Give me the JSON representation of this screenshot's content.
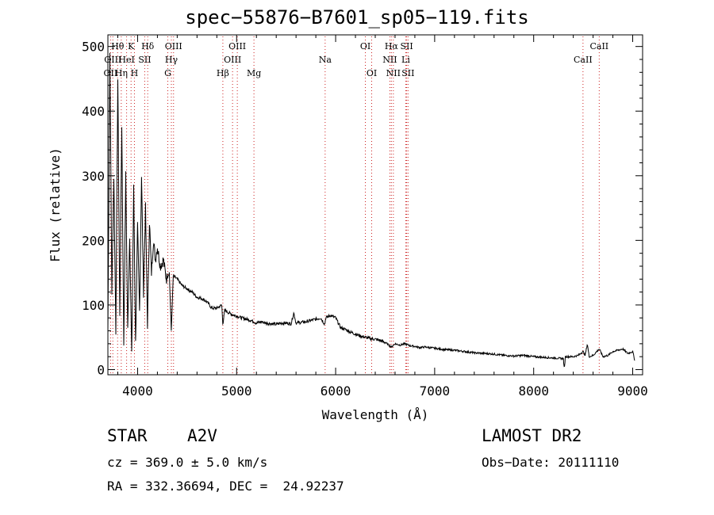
{
  "title": "spec−55876−B7601_sp05−119.fits",
  "info": {
    "obj_class": "STAR",
    "subclass": "A2V",
    "survey": "LAMOST DR2",
    "cz": "cz = 369.0 ± 5.0 km/s",
    "obs_date": "Obs−Date: 20111110",
    "radec": "RA = 332.36694, DEC =  24.92237"
  },
  "chart_data": {
    "type": "line",
    "title": "spec−55876−B7601_sp05−119.fits",
    "xlabel": "Wavelength (Å)",
    "ylabel": "Flux (relative)",
    "xlim": [
      3700,
      9100
    ],
    "ylim": [
      -8,
      518
    ],
    "xticks": [
      4000,
      5000,
      6000,
      7000,
      8000,
      9000
    ],
    "yticks": [
      0,
      100,
      200,
      300,
      400,
      500
    ],
    "grid": false,
    "legend": "none",
    "colors": {
      "line": "#000000",
      "marker": "#cc2222"
    },
    "series": [
      {
        "x": [
          3700,
          3720,
          3740,
          3760,
          3780,
          3800,
          3820,
          3840,
          3860,
          3880,
          3900,
          3920,
          3940,
          3960,
          3980,
          4000,
          4020,
          4040,
          4060,
          4080,
          4100,
          4120,
          4140,
          4160,
          4180,
          4200,
          4230,
          4260,
          4290,
          4320,
          4340,
          4360,
          4400,
          4450,
          4500,
          4550,
          4600,
          4650,
          4700,
          4750,
          4800,
          4850,
          4861,
          4880,
          4920,
          4960,
          5000,
          5050,
          5100,
          5150,
          5200,
          5250,
          5300,
          5350,
          5400,
          5450,
          5500,
          5550,
          5577,
          5600,
          5650,
          5700,
          5750,
          5800,
          5850,
          5890,
          5900,
          5950,
          6000,
          6050,
          6100,
          6150,
          6200,
          6250,
          6300,
          6350,
          6400,
          6450,
          6500,
          6563,
          6600,
          6650,
          6700,
          6750,
          6800,
          6850,
          6900,
          6950,
          7000,
          7100,
          7200,
          7300,
          7400,
          7500,
          7600,
          7700,
          7800,
          7900,
          8000,
          8100,
          8200,
          8300,
          8310,
          8320,
          8400,
          8450,
          8498,
          8520,
          8542,
          8560,
          8600,
          8662,
          8700,
          8750,
          8800,
          8850,
          8900,
          8950,
          9000,
          9020
        ],
        "y": [
          60,
          490,
          120,
          300,
          60,
          450,
          80,
          380,
          40,
          300,
          60,
          210,
          20,
          280,
          40,
          220,
          90,
          300,
          120,
          250,
          70,
          230,
          150,
          200,
          170,
          190,
          160,
          170,
          140,
          150,
          60,
          145,
          140,
          130,
          125,
          120,
          112,
          110,
          105,
          95,
          95,
          100,
          70,
          92,
          88,
          85,
          83,
          80,
          78,
          76,
          72,
          74,
          72,
          71,
          70,
          72,
          72,
          71,
          88,
          72,
          73,
          74,
          76,
          78,
          80,
          70,
          80,
          84,
          80,
          65,
          62,
          58,
          55,
          52,
          50,
          48,
          47,
          45,
          42,
          35,
          40,
          38,
          40,
          37,
          36,
          34,
          35,
          34,
          33,
          31,
          30,
          28,
          26,
          25,
          24,
          22,
          21,
          22,
          20,
          19,
          18,
          17,
          0,
          20,
          20,
          22,
          28,
          22,
          40,
          20,
          22,
          32,
          20,
          22,
          28,
          30,
          32,
          25,
          28,
          15
        ]
      }
    ],
    "lines": [
      {
        "label": "OII",
        "wave": 3727,
        "row": 2
      },
      {
        "label": "OIII",
        "wave": 3750,
        "row": 1
      },
      {
        "label": "Hθ",
        "wave": 3798,
        "row": 0
      },
      {
        "label": "Hη",
        "wave": 3835,
        "row": 2
      },
      {
        "label": "HeI",
        "wave": 3889,
        "row": 1
      },
      {
        "label": "K",
        "wave": 3934,
        "row": 0
      },
      {
        "label": "H",
        "wave": 3968,
        "row": 2
      },
      {
        "label": "SII",
        "wave": 4072,
        "row": 1
      },
      {
        "label": "Hδ",
        "wave": 4102,
        "row": 0
      },
      {
        "label": "G",
        "wave": 4305,
        "row": 2
      },
      {
        "label": "Hγ",
        "wave": 4341,
        "row": 1
      },
      {
        "label": "OIII",
        "wave": 4363,
        "row": 0
      },
      {
        "label": "Hβ",
        "wave": 4861,
        "row": 2
      },
      {
        "label": "OIII",
        "wave": 4959,
        "row": 1
      },
      {
        "label": "OIII",
        "wave": 5007,
        "row": 0
      },
      {
        "label": "Mg",
        "wave": 5175,
        "row": 2
      },
      {
        "label": "Na",
        "wave": 5894,
        "row": 1
      },
      {
        "label": "OI",
        "wave": 6300,
        "row": 0
      },
      {
        "label": "OI",
        "wave": 6364,
        "row": 2
      },
      {
        "label": "NII",
        "wave": 6548,
        "row": 1
      },
      {
        "label": "Hα",
        "wave": 6563,
        "row": 0
      },
      {
        "label": "NII",
        "wave": 6583,
        "row": 2
      },
      {
        "label": "Li",
        "wave": 6708,
        "row": 1
      },
      {
        "label": "SII",
        "wave": 6717,
        "row": 0
      },
      {
        "label": "SII",
        "wave": 6731,
        "row": 2
      },
      {
        "label": "CaII",
        "wave": 8498,
        "row": 1
      },
      {
        "label": "CaII",
        "wave": 8662,
        "row": 0
      }
    ]
  }
}
